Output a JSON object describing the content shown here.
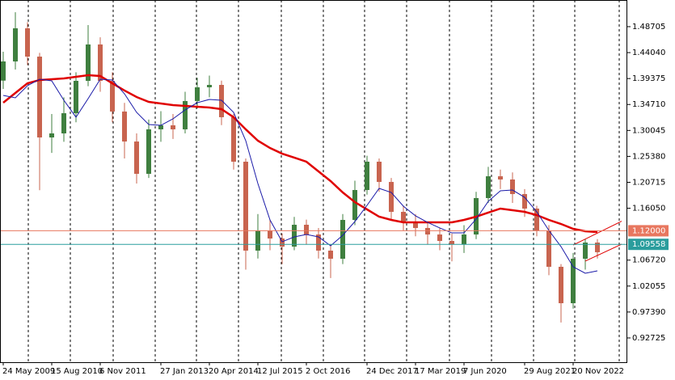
{
  "chart_data": {
    "type": "candlestick",
    "categories": [
      "24 May 2009",
      null,
      null,
      null,
      "15 Aug 2010",
      null,
      null,
      null,
      "6 Nov 2011",
      null,
      null,
      null,
      null,
      "27 Jan 2013",
      null,
      null,
      null,
      "20 Apr 2014",
      null,
      null,
      null,
      "12 Jul 2015",
      null,
      null,
      null,
      "2 Oct 2016",
      null,
      null,
      null,
      null,
      "24 Dec 2017",
      null,
      null,
      null,
      "17 Mar 2019",
      null,
      null,
      null,
      "7 Jun 2020",
      null,
      null,
      null,
      null,
      "29 Aug 2021",
      null,
      null,
      null,
      "20 Nov 2022",
      null,
      null
    ],
    "open": [
      1.39,
      1.4245,
      1.4841,
      1.4332,
      1.2878,
      1.2951,
      1.3314,
      1.3896,
      1.455,
      1.3896,
      1.3344,
      1.2805,
      1.2224,
      1.3024,
      1.3096,
      1.3024,
      1.3533,
      1.378,
      1.3823,
      1.3242,
      1.2442,
      1.0843,
      1.1206,
      1.1061,
      1.0915,
      1.1308,
      1.1133,
      1.0843,
      1.0697,
      1.1395,
      1.1933,
      1.2442,
      1.2078,
      1.154,
      1.1351,
      1.125,
      1.1133,
      1.1017,
      1.0959,
      1.1133,
      1.1788,
      1.218,
      1.2122,
      1.186,
      1.1599,
      1.1206,
      1.0552,
      0.9897,
      1.0697,
      1.0988
    ],
    "high": [
      1.442,
      1.513,
      1.495,
      1.44,
      1.33,
      1.36,
      1.405,
      1.49,
      1.468,
      1.405,
      1.35,
      1.295,
      1.32,
      1.335,
      1.33,
      1.37,
      1.395,
      1.399,
      1.39,
      1.33,
      1.25,
      1.15,
      1.14,
      1.115,
      1.145,
      1.14,
      1.125,
      1.095,
      1.15,
      1.21,
      1.255,
      1.25,
      1.215,
      1.165,
      1.15,
      1.135,
      1.125,
      1.115,
      1.13,
      1.19,
      1.235,
      1.23,
      1.225,
      1.195,
      1.165,
      1.13,
      1.06,
      1.08,
      1.105,
      1.105
    ],
    "low": [
      1.375,
      1.41,
      1.418,
      1.193,
      1.26,
      1.28,
      1.315,
      1.38,
      1.37,
      1.315,
      1.25,
      1.205,
      1.215,
      1.28,
      1.285,
      1.295,
      1.34,
      1.36,
      1.31,
      1.23,
      1.05,
      1.07,
      1.085,
      1.06,
      1.085,
      1.095,
      1.07,
      1.035,
      1.06,
      1.13,
      1.185,
      1.19,
      1.14,
      1.12,
      1.11,
      1.095,
      1.085,
      1.065,
      1.08,
      1.105,
      1.17,
      1.195,
      1.17,
      1.145,
      1.11,
      1.04,
      0.955,
      0.98,
      1.05,
      1.07
    ],
    "close": [
      1.4245,
      1.4841,
      1.4332,
      1.2878,
      1.2951,
      1.3314,
      1.3896,
      1.455,
      1.3896,
      1.3344,
      1.2805,
      1.2224,
      1.3024,
      1.3096,
      1.3024,
      1.3533,
      1.378,
      1.3823,
      1.3242,
      1.2442,
      1.0843,
      1.1206,
      1.1061,
      1.0915,
      1.1308,
      1.1133,
      1.0843,
      1.0697,
      1.1395,
      1.1933,
      1.2442,
      1.2078,
      1.154,
      1.1351,
      1.125,
      1.1133,
      1.1017,
      1.0959,
      1.1133,
      1.1788,
      1.218,
      1.2122,
      1.186,
      1.1599,
      1.1206,
      1.0552,
      0.9897,
      1.0697,
      1.0988,
      1.0814
    ],
    "up_color": "#3f7f3f",
    "down_color": "#c8644f",
    "lines": [
      {
        "color": "#e00000",
        "values": [
          1.3503,
          1.3678,
          1.3852,
          1.3911,
          1.3925,
          1.394,
          1.3969,
          1.3998,
          1.3983,
          1.3852,
          1.3722,
          1.3605,
          1.3518,
          1.3489,
          1.346,
          1.3445,
          1.3431,
          1.3416,
          1.3387,
          1.3242,
          1.3024,
          1.282,
          1.2689,
          1.2587,
          1.2515,
          1.2442,
          1.2267,
          1.2093,
          1.1889,
          1.1715,
          1.1584,
          1.1453,
          1.1395,
          1.1351,
          1.1351,
          1.1351,
          1.1351,
          1.1351,
          1.1395,
          1.1453,
          1.1526,
          1.1599,
          1.157,
          1.154,
          1.1482,
          1.1395,
          1.1322,
          1.1235,
          1.1192,
          1.1177
        ]
      },
      {
        "color": "#1a1aa8",
        "values": [
          1.3634,
          1.3591,
          1.3809,
          1.3925,
          1.3896,
          1.3547,
          1.3242,
          1.3576,
          1.3925,
          1.3911,
          1.3663,
          1.3329,
          1.3111,
          1.3096,
          1.3213,
          1.3373,
          1.3503,
          1.3562,
          1.3547,
          1.3329,
          1.282,
          1.2049,
          1.1395,
          1.1002,
          1.109,
          1.1133,
          1.109,
          1.093,
          1.1119,
          1.1366,
          1.1657,
          1.1962,
          1.1889,
          1.1642,
          1.1468,
          1.1351,
          1.125,
          1.1162,
          1.1162,
          1.141,
          1.1729,
          1.1919,
          1.1933,
          1.1802,
          1.154,
          1.1206,
          1.0915,
          1.0552,
          1.0436,
          1.0479
        ]
      }
    ],
    "trendlines": [
      {
        "color": "#e00000",
        "x": [
          47,
          51
        ],
        "values": [
          1.0944,
          1.1372
        ]
      },
      {
        "color": "#e00000",
        "x": [
          48,
          51
        ],
        "values": [
          1.0654,
          1.0959
        ]
      }
    ],
    "levels": [
      {
        "color": "#e8775f",
        "value": 1.12,
        "label": "1.12000"
      },
      {
        "color": "#2a9d9d",
        "value": 1.09558,
        "label": "1.09558"
      }
    ],
    "ylim": [
      0.8836,
      1.535
    ],
    "yticks": [
      1.48705,
      {
        "value": 1.4404,
        "label": "1.44040"
      },
      1.39375,
      {
        "value": 1.3471,
        "label": "1.34710"
      },
      1.30045,
      {
        "value": 1.2538,
        "label": "1.25380"
      },
      1.20715,
      {
        "value": 1.1605,
        "label": "1.16050"
      },
      {
        "value": 1.0672,
        "label": "1.06720"
      },
      1.02055,
      {
        "value": 0.9739,
        "label": "0.97390"
      },
      0.92725
    ]
  }
}
